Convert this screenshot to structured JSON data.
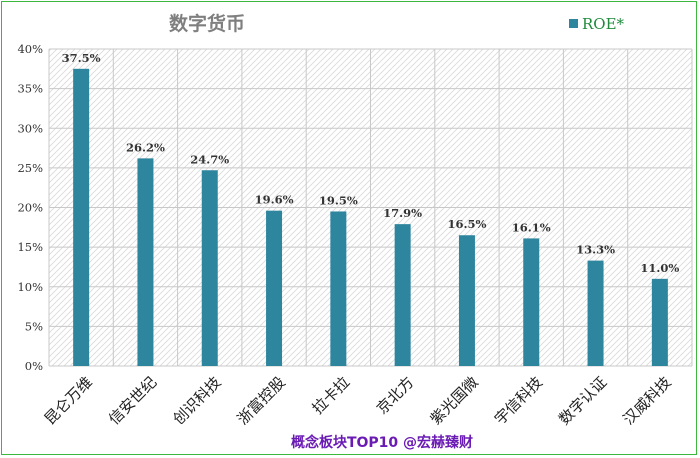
{
  "chart_data": {
    "type": "bar",
    "title": "数字货币",
    "categories": [
      "昆仑万维",
      "信安世纪",
      "创识科技",
      "浙富控股",
      "拉卡拉",
      "京北方",
      "紫光国微",
      "宇信科技",
      "数字认证",
      "汉威科技"
    ],
    "series": [
      {
        "name": "ROE*",
        "values": [
          37.5,
          26.2,
          24.7,
          19.6,
          19.5,
          17.9,
          16.5,
          16.1,
          13.3,
          11.0
        ],
        "labels": [
          "37.5%",
          "26.2%",
          "24.7%",
          "19.6%",
          "19.5%",
          "17.9%",
          "16.5%",
          "16.1%",
          "13.3%",
          "11.0%"
        ]
      }
    ],
    "yticks": [
      "0%",
      "5%",
      "10%",
      "15%",
      "20%",
      "25%",
      "30%",
      "35%",
      "40%"
    ],
    "ylim": [
      0,
      40
    ],
    "grid": true,
    "legend_position": "top-right",
    "footer": "概念板块TOP10 @宏赫臻财"
  },
  "colors": {
    "bar": "#2e859e",
    "border": "#3cb93c",
    "footer": "#6a1bb3",
    "legend_text": "#1f8a3c",
    "title": "#7f7f7f"
  }
}
